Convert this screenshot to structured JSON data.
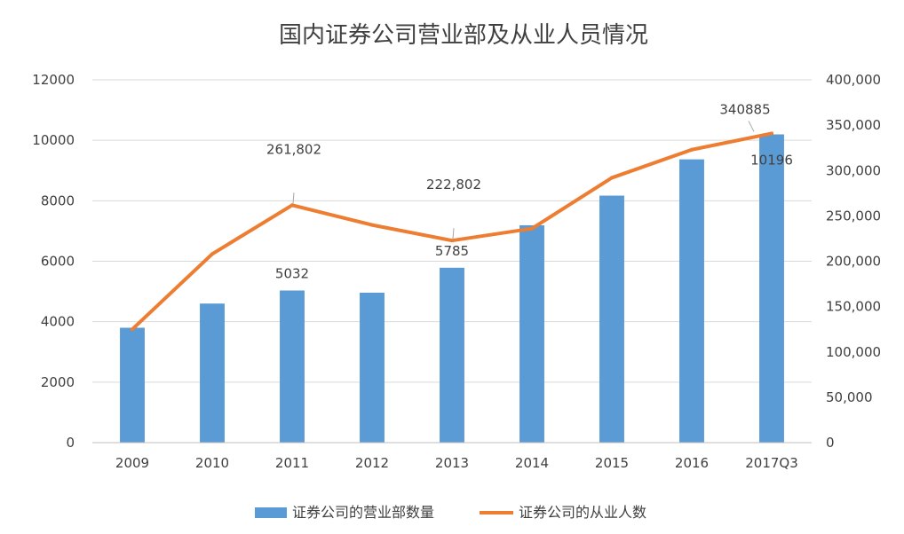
{
  "chart_data": {
    "type": "bar+line",
    "title": "国内证券公司营业部及从业人员情况",
    "categories": [
      "2009",
      "2010",
      "2011",
      "2012",
      "2013",
      "2014",
      "2015",
      "2016",
      "2017Q3"
    ],
    "series": [
      {
        "name": "证券公司的营业部数量",
        "type": "bar",
        "axis": "left",
        "color": "#5B9BD5",
        "values": [
          3800,
          4600,
          5032,
          4960,
          5785,
          7190,
          8170,
          9370,
          10196
        ]
      },
      {
        "name": "证券公司的从业人数",
        "type": "line",
        "axis": "right",
        "color": "#ED7D31",
        "values": [
          125000,
          208000,
          261802,
          240000,
          222802,
          236000,
          292000,
          323000,
          340885
        ]
      }
    ],
    "y_left": {
      "ylim": [
        0,
        12000
      ],
      "ticks": [
        "0",
        "2000",
        "4000",
        "6000",
        "8000",
        "10000",
        "12000"
      ]
    },
    "y_right": {
      "ylim": [
        0,
        400000
      ],
      "ticks": [
        "0",
        "50,000",
        "100,000",
        "150,000",
        "200,000",
        "250,000",
        "300,000",
        "350,000",
        "400,000"
      ]
    },
    "data_labels": [
      {
        "series": 0,
        "index": 2,
        "text": "5032"
      },
      {
        "series": 0,
        "index": 4,
        "text": "5785"
      },
      {
        "series": 0,
        "index": 8,
        "text": "10196"
      },
      {
        "series": 1,
        "index": 2,
        "text": "261,802"
      },
      {
        "series": 1,
        "index": 4,
        "text": "222,802"
      },
      {
        "series": 1,
        "index": 8,
        "text": "340885"
      }
    ],
    "grid": true,
    "legend_position": "bottom"
  }
}
